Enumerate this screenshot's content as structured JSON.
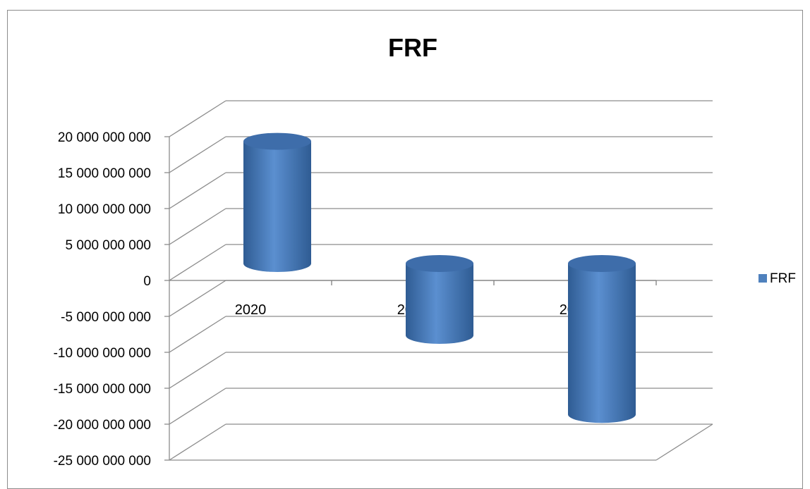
{
  "chart_data": {
    "type": "bar",
    "style": "3d-cylinder",
    "title": "FRF",
    "categories": [
      "2020",
      "2021",
      "2022"
    ],
    "series": [
      {
        "name": "FRF",
        "values": [
          17000000000,
          -10000000000,
          -21000000000
        ]
      }
    ],
    "ylim": [
      -25000000000,
      20000000000
    ],
    "ytick_step": 5000000000,
    "ytick_labels": [
      "20 000 000 000",
      "15 000 000 000",
      "10 000 000 000",
      "5 000 000 000",
      "0",
      "-5 000 000 000",
      "-10 000 000 000",
      "-15 000 000 000",
      "-20 000 000 000",
      "-25 000 000 000"
    ],
    "grid": true,
    "legend": "right",
    "colors": {
      "bar": "#4F81BD",
      "bar_dark": "#2F5C93",
      "grid": "#8C8C8C"
    }
  }
}
